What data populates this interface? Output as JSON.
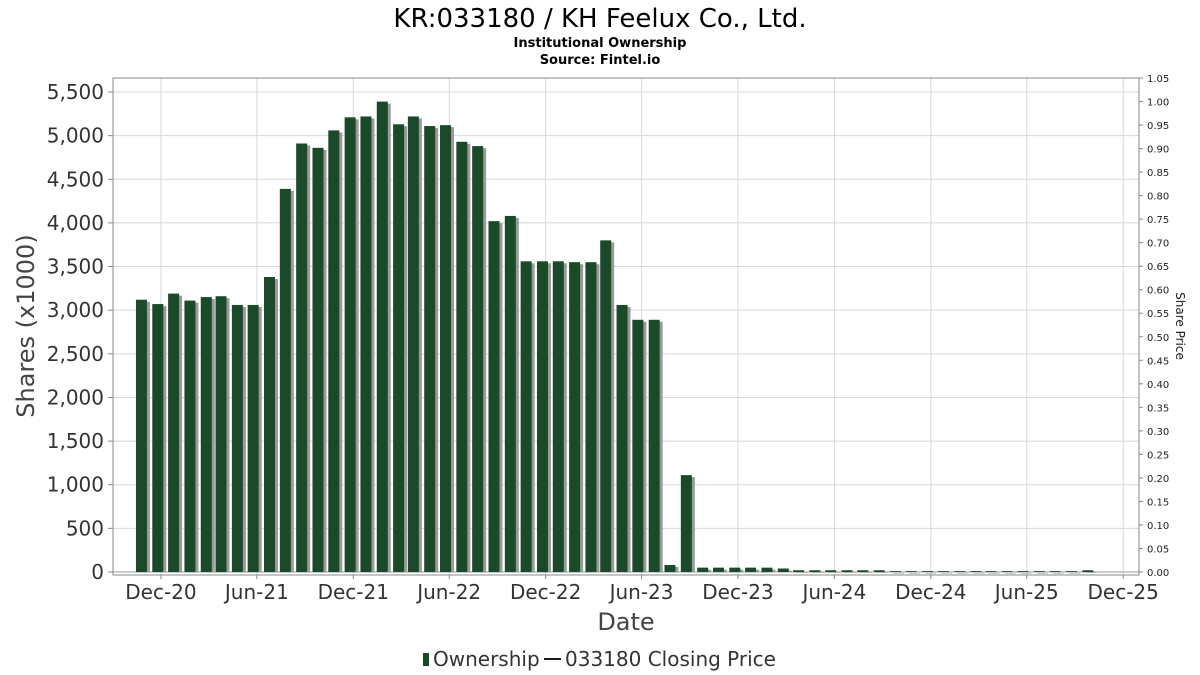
{
  "chart_data": {
    "type": "bar",
    "title": "KR:033180 / KH Feelux Co., Ltd.",
    "subtitle_lines": [
      "Institutional Ownership",
      "Source: Fintel.io"
    ],
    "xlabel": "Date",
    "ylabel": "Shares (x1000)",
    "y2label": "Share Price",
    "ylim": [
      0,
      5600
    ],
    "y2lim": [
      0,
      1.05
    ],
    "yticks": [
      0,
      500,
      1000,
      1500,
      2000,
      2500,
      3000,
      3500,
      4000,
      4500,
      5000,
      5500
    ],
    "ytick_labels": [
      "0",
      "500",
      "1,000",
      "1,500",
      "2,000",
      "2,500",
      "3,000",
      "3,500",
      "4,000",
      "4,500",
      "5,000",
      "5,500"
    ],
    "y2ticks": [
      0,
      0.05,
      0.1,
      0.15,
      0.2,
      0.25,
      0.3,
      0.35,
      0.4,
      0.45,
      0.5,
      0.55,
      0.6,
      0.65,
      0.7,
      0.75,
      0.8,
      0.85,
      0.9,
      0.95,
      1.0,
      1.05
    ],
    "y2tick_labels": [
      "0.00",
      "0.05",
      "0.10",
      "0.15",
      "0.20",
      "0.25",
      "0.30",
      "0.35",
      "0.40",
      "0.45",
      "0.50",
      "0.55",
      "0.60",
      "0.65",
      "0.70",
      "0.75",
      "0.80",
      "0.85",
      "0.90",
      "0.95",
      "1.00",
      "1.05"
    ],
    "xlim": [
      "2020-09-01",
      "2025-12-31"
    ],
    "xticks": [
      "2020-12-01",
      "2021-06-01",
      "2021-12-01",
      "2022-06-01",
      "2022-12-01",
      "2023-06-01",
      "2023-12-01",
      "2024-06-01",
      "2024-12-01",
      "2025-06-01",
      "2025-12-01"
    ],
    "xtick_labels": [
      "Dec-20",
      "Jun-21",
      "Dec-21",
      "Jun-22",
      "Dec-22",
      "Jun-23",
      "Dec-23",
      "Jun-24",
      "Dec-24",
      "Jun-25",
      "Dec-25"
    ],
    "grid": true,
    "series": [
      {
        "name": "Ownership",
        "color": "#1b4a2a",
        "x": [
          "2020-10-25",
          "2020-11-25",
          "2020-12-25",
          "2021-01-25",
          "2021-02-25",
          "2021-03-25",
          "2021-04-25",
          "2021-05-25",
          "2021-06-25",
          "2021-07-25",
          "2021-08-25",
          "2021-09-25",
          "2021-10-25",
          "2021-11-25",
          "2021-12-25",
          "2022-01-25",
          "2022-02-25",
          "2022-03-25",
          "2022-04-25",
          "2022-05-25",
          "2022-06-25",
          "2022-07-25",
          "2022-08-25",
          "2022-09-25",
          "2022-10-25",
          "2022-11-25",
          "2022-12-25",
          "2023-01-25",
          "2023-02-25",
          "2023-03-25",
          "2023-04-25",
          "2023-05-25",
          "2023-06-25",
          "2023-07-25",
          "2023-08-25",
          "2023-09-25",
          "2023-10-25",
          "2023-11-25",
          "2023-12-25",
          "2024-01-25",
          "2024-02-25",
          "2024-03-25",
          "2024-04-25",
          "2024-05-25",
          "2024-06-25",
          "2024-07-25",
          "2024-08-25",
          "2024-09-25",
          "2024-10-25",
          "2024-11-25",
          "2024-12-25",
          "2025-01-25",
          "2025-02-25",
          "2025-03-25",
          "2025-04-25",
          "2025-05-25",
          "2025-06-25",
          "2025-07-25",
          "2025-08-25",
          "2025-09-25"
        ],
        "values": [
          3120,
          3070,
          3190,
          3110,
          3150,
          3160,
          3060,
          3060,
          3380,
          4390,
          4910,
          4860,
          5060,
          5210,
          5220,
          5390,
          5130,
          5220,
          5110,
          5120,
          4930,
          4880,
          4020,
          4080,
          3560,
          3560,
          3560,
          3550,
          3550,
          3800,
          3060,
          2890,
          2890,
          80,
          1110,
          50,
          50,
          50,
          50,
          50,
          40,
          20,
          20,
          20,
          20,
          20,
          20,
          10,
          10,
          10,
          10,
          10,
          10,
          10,
          10,
          10,
          10,
          10,
          10,
          20
        ]
      },
      {
        "name": "033180 Closing Price",
        "color": "#1a1a1a",
        "axis": "right",
        "values": []
      }
    ],
    "legend": {
      "position": "bottom-center",
      "entries": [
        "Ownership",
        "033180 Closing Price"
      ]
    }
  }
}
